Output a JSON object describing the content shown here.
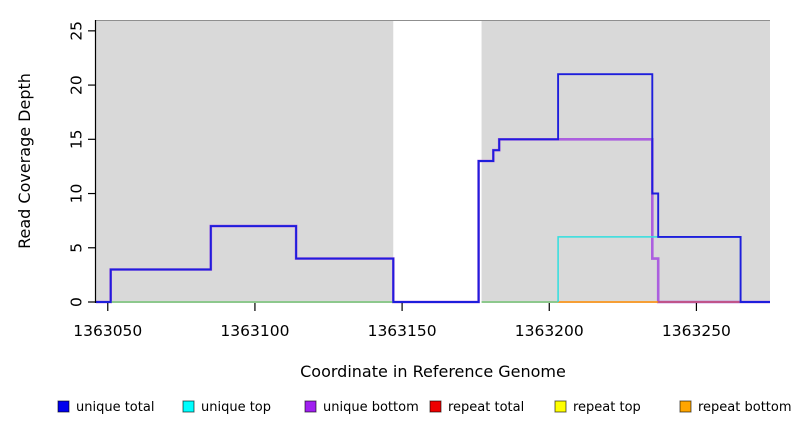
{
  "chart_data": {
    "type": "line",
    "subtype": "step",
    "title": "",
    "xlabel": "Coordinate in Reference Genome",
    "ylabel": "Read Coverage Depth",
    "xlim": [
      1363046,
      1363275
    ],
    "ylim": [
      0,
      26
    ],
    "x_ticks": [
      1363050,
      1363100,
      1363150,
      1363200,
      1363250
    ],
    "x_tick_labels": [
      "1363050",
      "1363100",
      "1363150",
      "1363200",
      "1363250"
    ],
    "y_ticks": [
      0,
      5,
      10,
      15,
      20,
      25
    ],
    "y_tick_labels": [
      "0",
      "5",
      "10",
      "15",
      "20",
      "25"
    ],
    "grid": false,
    "legend_position": "bottom",
    "plot_bg": "#D9D9D9",
    "gap_band": {
      "x1": 1363147,
      "x2": 1363177,
      "color": "#FFFFFF"
    },
    "series": [
      {
        "name": "unique total",
        "legend_color": "#0000EE",
        "line_color": "#1E1EDC",
        "line_width": 1.9,
        "draw": true,
        "steps": [
          [
            1363046,
            0
          ],
          [
            1363051,
            3
          ],
          [
            1363085,
            7
          ],
          [
            1363114,
            4
          ],
          [
            1363147,
            0
          ],
          [
            1363176,
            13
          ],
          [
            1363181,
            14
          ],
          [
            1363183,
            15
          ],
          [
            1363203,
            21
          ],
          [
            1363235,
            10
          ],
          [
            1363237,
            6
          ],
          [
            1363265,
            0
          ]
        ],
        "end": 1363275
      },
      {
        "name": "unique top",
        "legend_color": "#00FFFF",
        "line_color": "#30DFDF",
        "line_width": 1.5,
        "draw": true,
        "steps": [
          [
            1363203,
            0
          ],
          [
            1363203,
            6
          ],
          [
            1363265,
            0
          ]
        ],
        "end": 1363265
      },
      {
        "name": "unique bottom",
        "legend_color": "#A020F0",
        "line_color": "#AC5FDF",
        "line_width": 2.6,
        "draw": true,
        "steps": [
          [
            1363046,
            0
          ],
          [
            1363051,
            3
          ],
          [
            1363085,
            7
          ],
          [
            1363114,
            4
          ],
          [
            1363147,
            0
          ],
          [
            1363176,
            13
          ],
          [
            1363181,
            14
          ],
          [
            1363183,
            15
          ],
          [
            1363235,
            4
          ],
          [
            1363237,
            0
          ]
        ],
        "end": 1363275
      },
      {
        "name": "repeat total",
        "legend_color": "#EE0000",
        "line_color": "#C7506E",
        "line_width": 1.5,
        "draw": false,
        "steps": [
          [
            1363046,
            0
          ]
        ],
        "end": 1363275
      },
      {
        "name": "repeat top",
        "legend_color": "#FFFF00",
        "line_color": "#FFFF00",
        "line_width": 1.5,
        "draw": false,
        "steps": [
          [
            1363046,
            0
          ]
        ],
        "end": 1363275
      },
      {
        "name": "repeat bottom",
        "legend_color": "#FFA500",
        "line_color": "#FF8C00",
        "line_width": 1.7,
        "draw": false,
        "steps": [
          [
            1363046,
            0
          ]
        ],
        "end": 1363275
      }
    ],
    "baseline_segments": [
      {
        "x1": 1363051,
        "x2": 1363147,
        "color": "#74C274"
      },
      {
        "x1": 1363177,
        "x2": 1363203,
        "color": "#74C274"
      },
      {
        "x1": 1363203,
        "x2": 1363237,
        "color": "#FF8C00"
      },
      {
        "x1": 1363237,
        "x2": 1363265,
        "color": "#C7506E"
      }
    ],
    "legend": [
      {
        "label": "unique total",
        "color": "#0000EE"
      },
      {
        "label": "unique top",
        "color": "#00FFFF"
      },
      {
        "label": "unique bottom",
        "color": "#A020F0"
      },
      {
        "label": "repeat total",
        "color": "#EE0000"
      },
      {
        "label": "repeat top",
        "color": "#FFFF00"
      },
      {
        "label": "repeat bottom",
        "color": "#FFA500"
      }
    ]
  }
}
